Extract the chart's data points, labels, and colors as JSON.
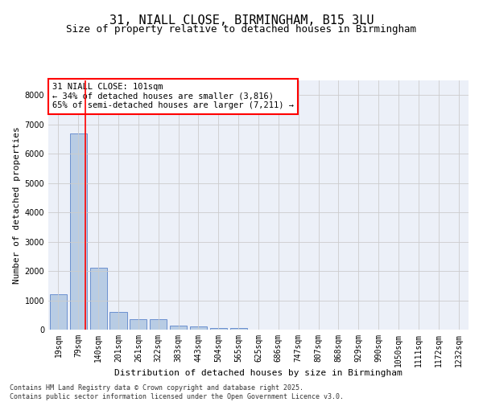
{
  "title": "31, NIALL CLOSE, BIRMINGHAM, B15 3LU",
  "subtitle": "Size of property relative to detached houses in Birmingham",
  "xlabel": "Distribution of detached houses by size in Birmingham",
  "ylabel": "Number of detached properties",
  "categories": [
    "19sqm",
    "79sqm",
    "140sqm",
    "201sqm",
    "261sqm",
    "322sqm",
    "383sqm",
    "443sqm",
    "504sqm",
    "565sqm",
    "625sqm",
    "686sqm",
    "747sqm",
    "807sqm",
    "868sqm",
    "929sqm",
    "990sqm",
    "1050sqm",
    "1111sqm",
    "1172sqm",
    "1232sqm"
  ],
  "values": [
    1200,
    6700,
    2100,
    600,
    350,
    350,
    150,
    100,
    50,
    50,
    0,
    0,
    0,
    0,
    0,
    0,
    0,
    0,
    0,
    0,
    0
  ],
  "bar_color": "#b8cce4",
  "bar_edgecolor": "#4472c4",
  "ylim": [
    0,
    8500
  ],
  "yticks": [
    0,
    1000,
    2000,
    3000,
    4000,
    5000,
    6000,
    7000,
    8000
  ],
  "vline_color": "#ff0000",
  "annotation_text": "31 NIALL CLOSE: 101sqm\n← 34% of detached houses are smaller (3,816)\n65% of semi-detached houses are larger (7,211) →",
  "annotation_box_color": "#ffffff",
  "annotation_box_edgecolor": "#ff0000",
  "grid_color": "#cccccc",
  "bg_color": "#ecf0f8",
  "footnote": "Contains HM Land Registry data © Crown copyright and database right 2025.\nContains public sector information licensed under the Open Government Licence v3.0.",
  "title_fontsize": 11,
  "subtitle_fontsize": 9,
  "axis_label_fontsize": 8,
  "tick_fontsize": 7,
  "annotation_fontsize": 7.5,
  "footnote_fontsize": 6
}
